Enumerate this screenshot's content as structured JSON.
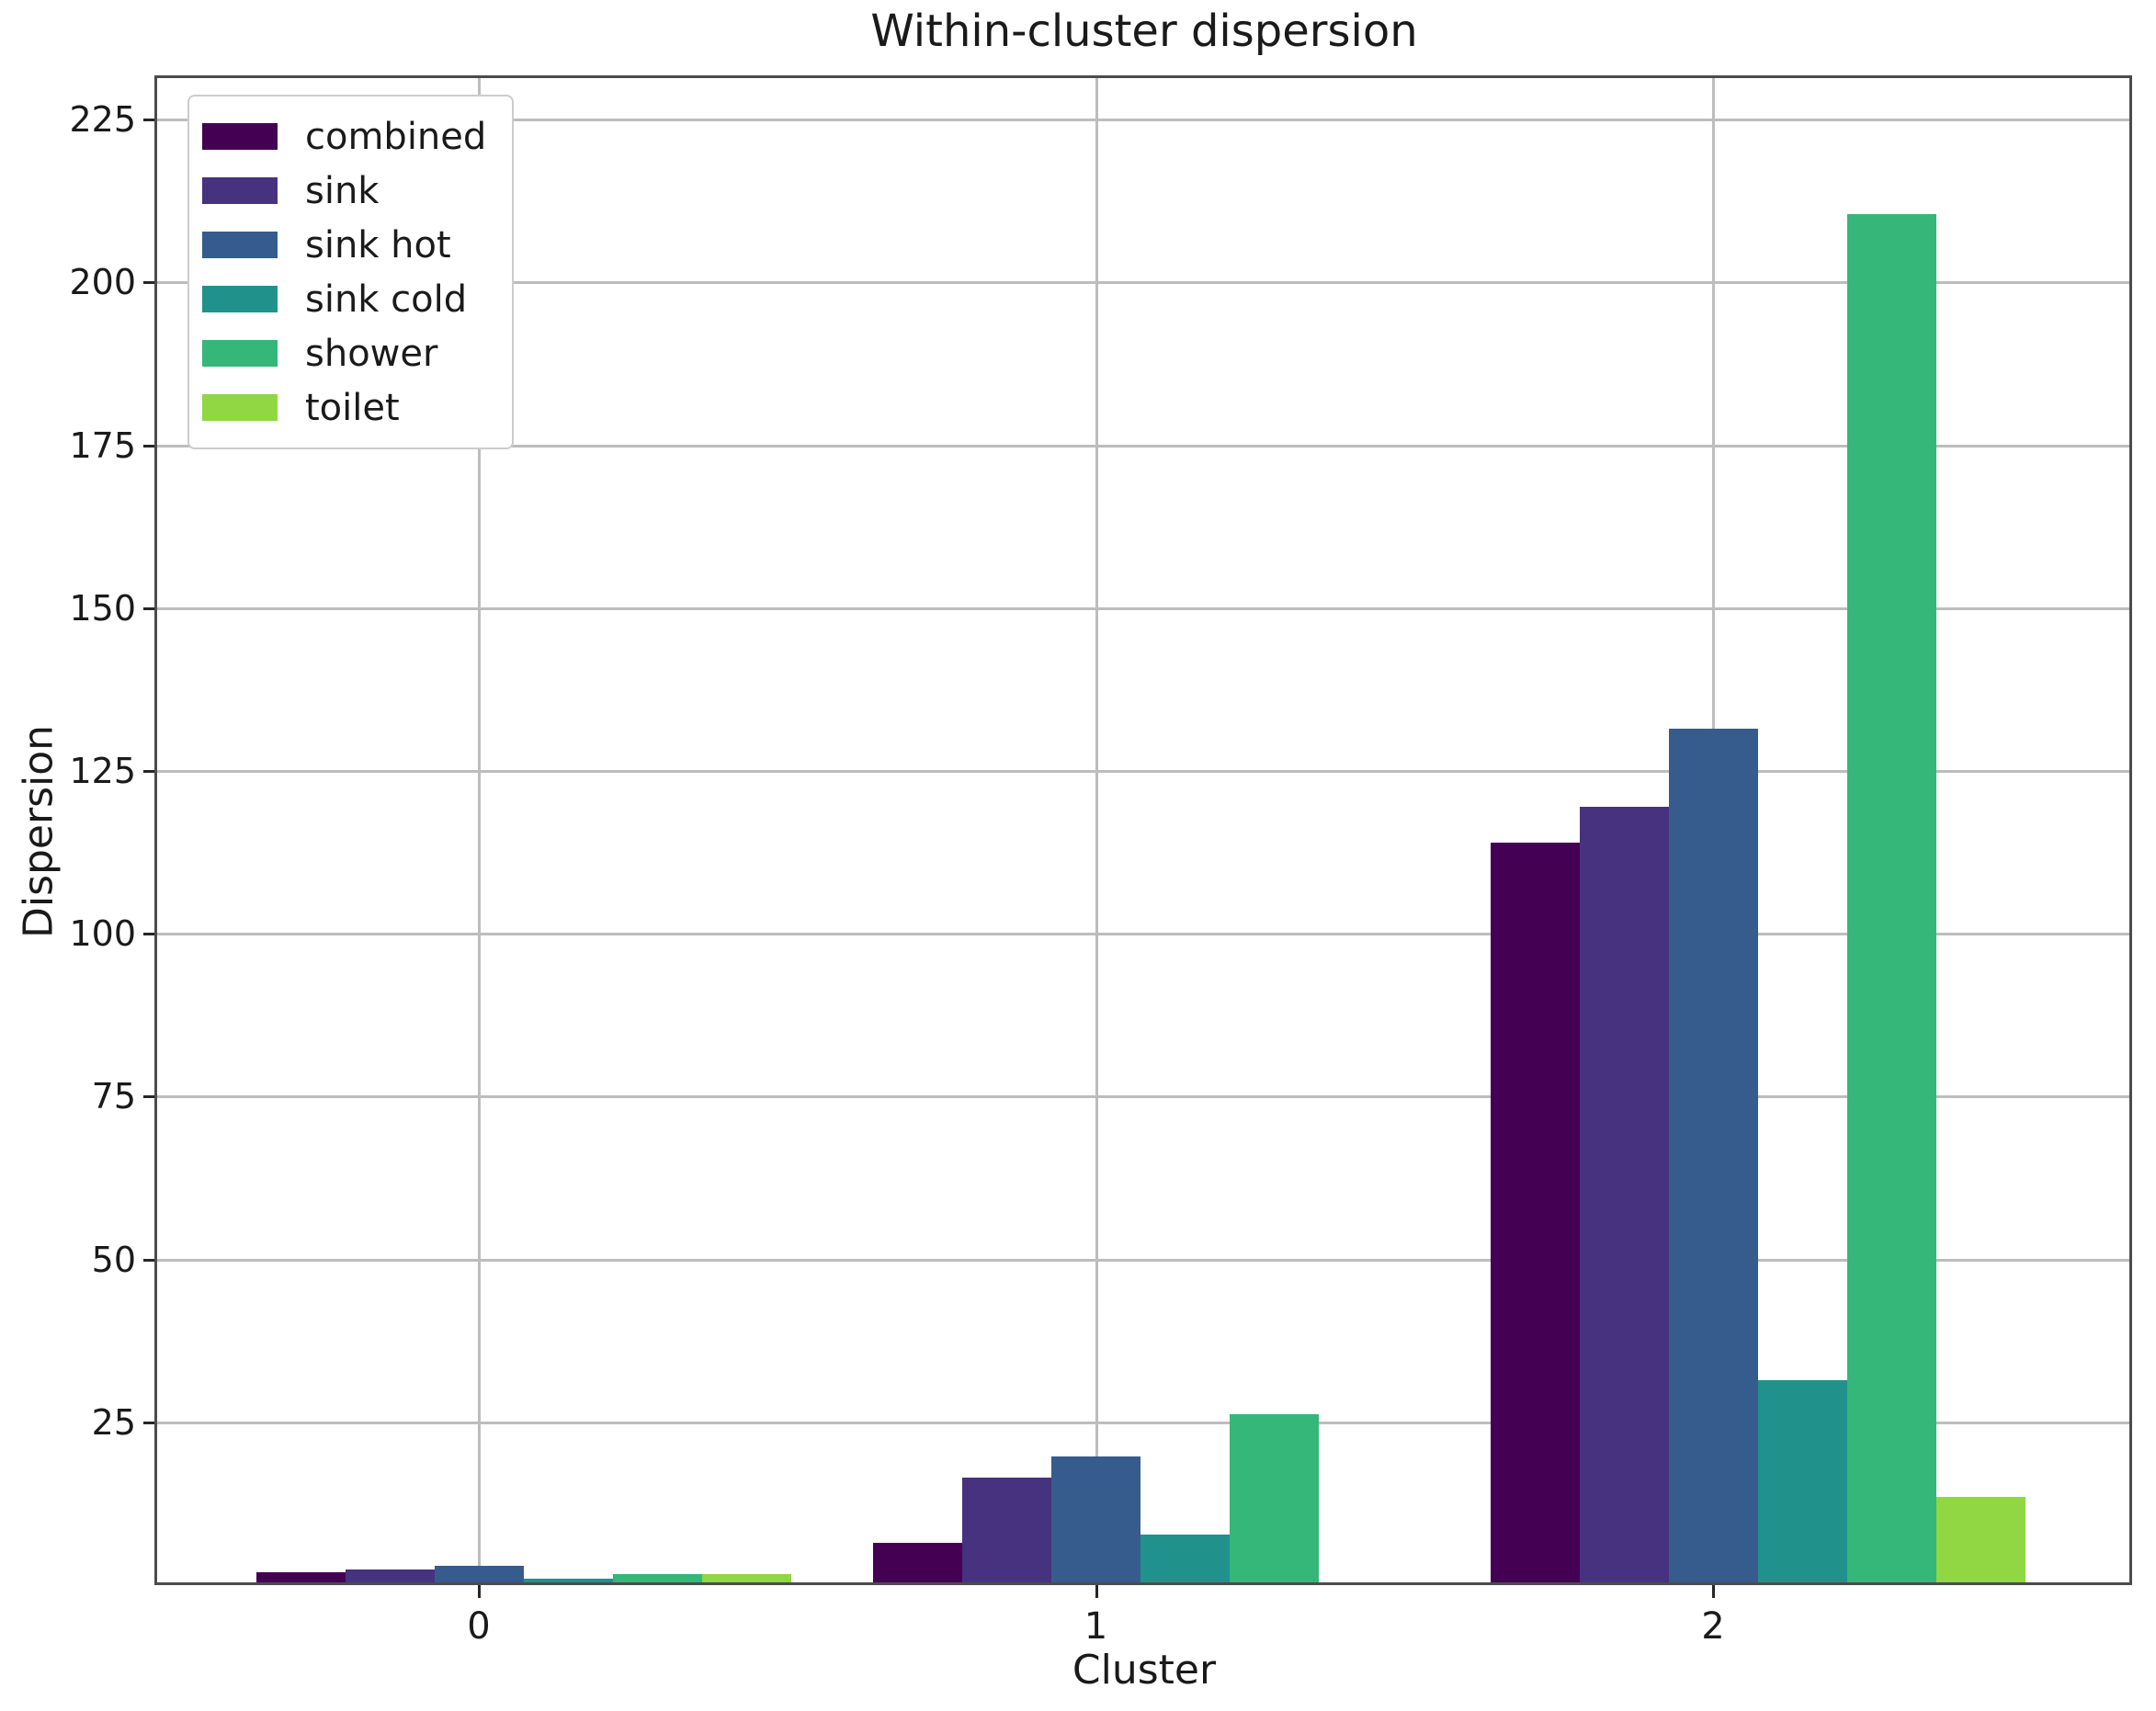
{
  "chart_data": {
    "type": "bar",
    "title": "Within-cluster dispersion",
    "xlabel": "Cluster",
    "ylabel": "Dispersion",
    "categories": [
      "0",
      "1",
      "2"
    ],
    "series": [
      {
        "name": "combined",
        "color": "#440154",
        "values": [
          2.0,
          6.5,
          114.0
        ]
      },
      {
        "name": "sink",
        "color": "#46327e",
        "values": [
          2.4,
          16.5,
          119.5
        ]
      },
      {
        "name": "sink hot",
        "color": "#365c8d",
        "values": [
          2.9,
          19.8,
          131.5
        ]
      },
      {
        "name": "sink cold",
        "color": "#21918c",
        "values": [
          1.0,
          7.8,
          31.5
        ]
      },
      {
        "name": "shower",
        "color": "#35b779",
        "values": [
          1.7,
          26.3,
          210.5
        ]
      },
      {
        "name": "toilet",
        "color": "#90d743",
        "values": [
          1.7,
          0.0,
          13.5
        ]
      }
    ],
    "yticks": [
      25,
      50,
      75,
      100,
      125,
      150,
      175,
      200,
      225
    ],
    "ylim": [
      0,
      231.5
    ],
    "grid": true,
    "legend_position": "upper left",
    "colors": {
      "grid": "#bdbdbd",
      "spine": "#4c4c4c",
      "text": "#1a1a1a",
      "background": "#ffffff"
    }
  }
}
